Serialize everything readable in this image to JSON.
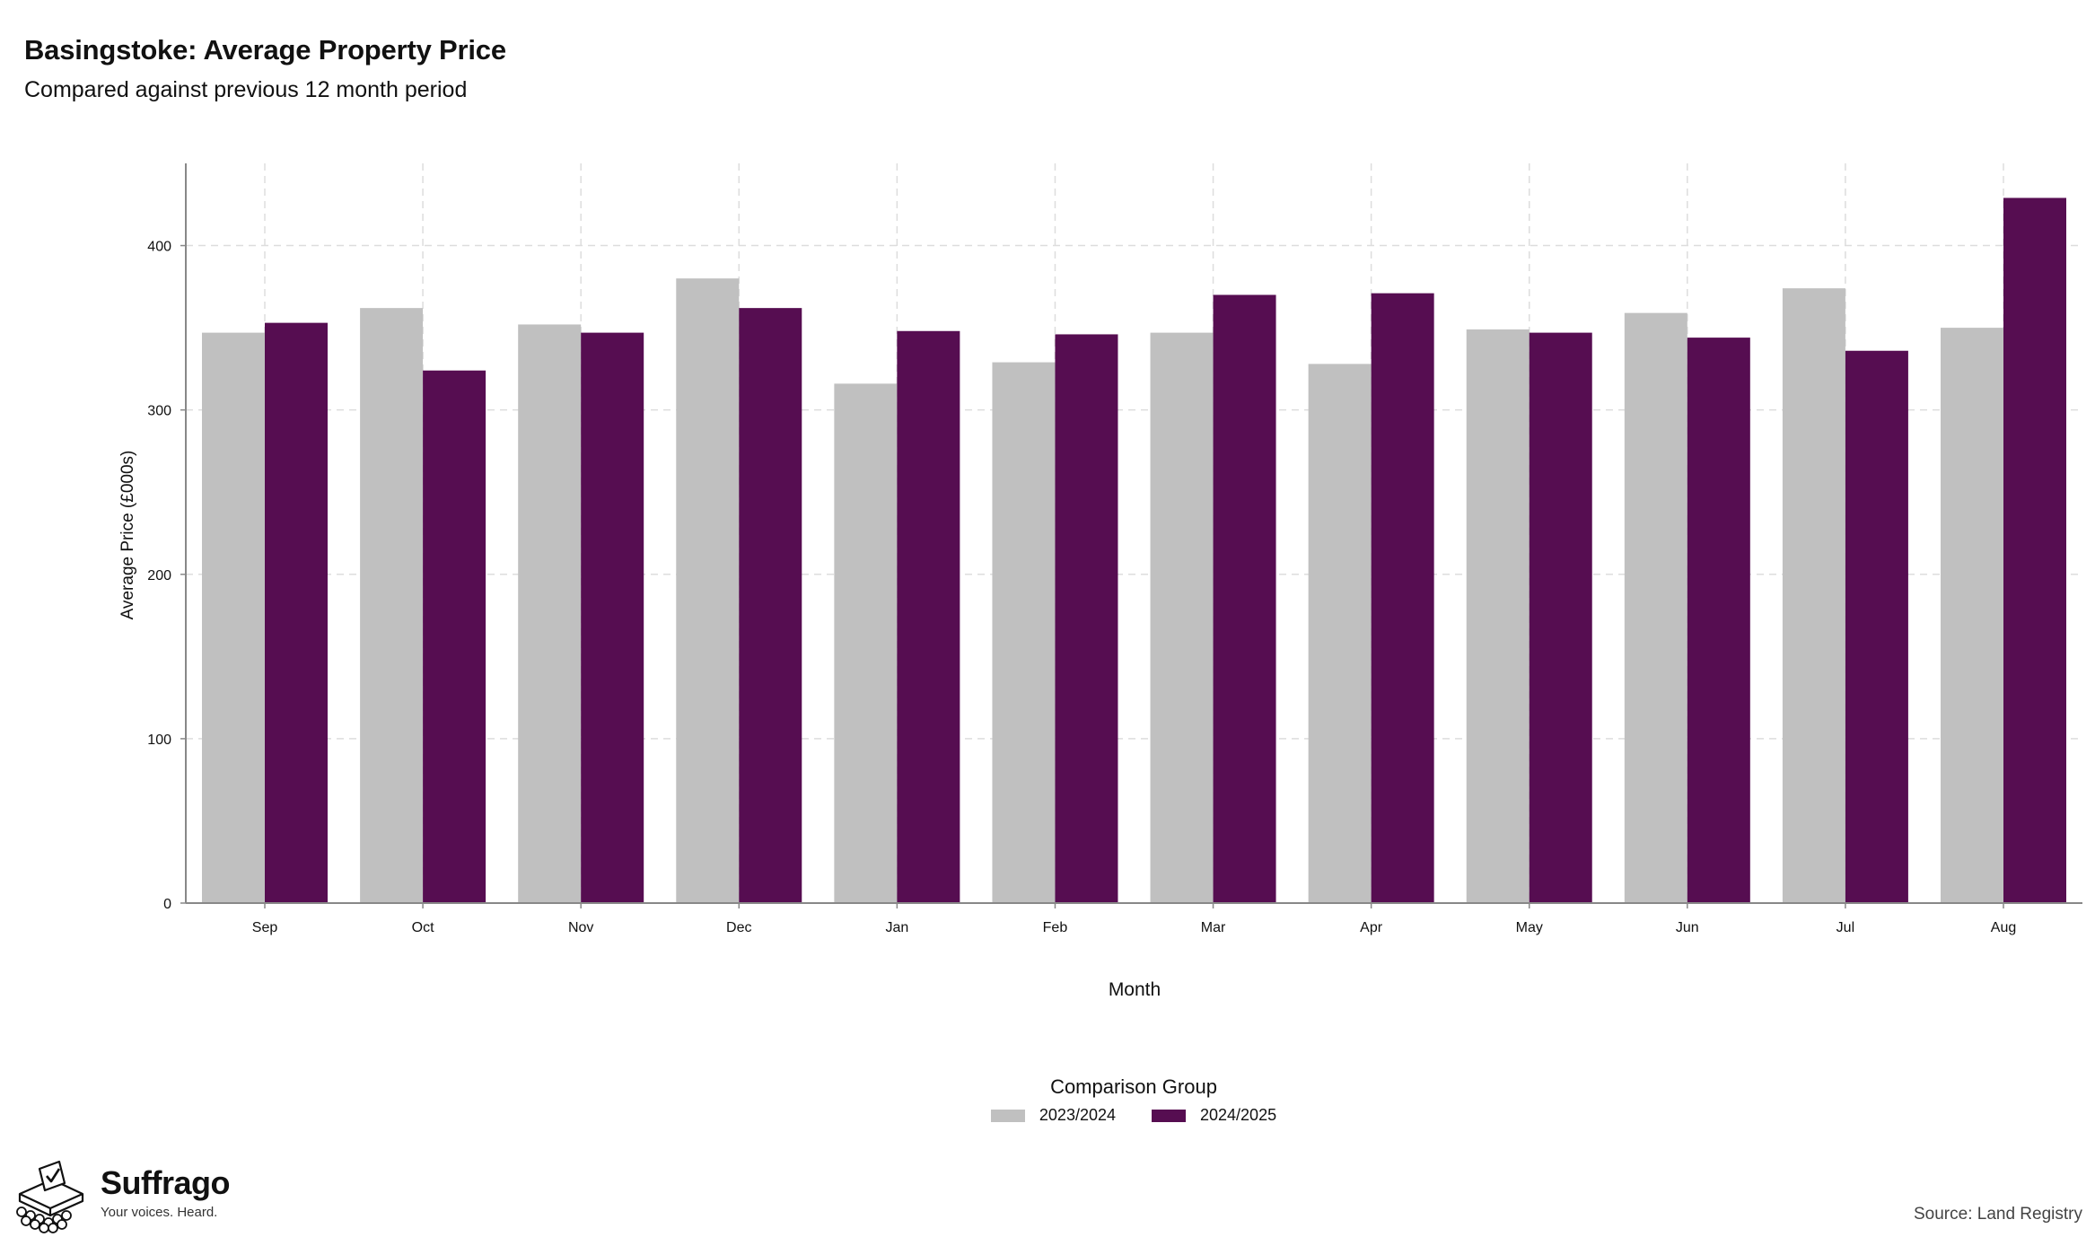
{
  "header": {
    "title": "Basingstoke: Average Property Price",
    "subtitle": "Compared against previous 12 month period"
  },
  "colors": {
    "series_2023": "#c0c0c0",
    "series_2024": "#560d51",
    "grid": "#dddddd",
    "axis": "#888888"
  },
  "chart_data": {
    "type": "bar",
    "title": "Basingstoke: Average Property Price",
    "subtitle": "Compared against previous 12 month period",
    "xlabel": "Month",
    "ylabel": "Average Price (£000s)",
    "ylim": [
      0,
      450
    ],
    "yticks": [
      0,
      100,
      200,
      300,
      400
    ],
    "grid": true,
    "legend_title": "Comparison Group",
    "legend_placement": "bottom",
    "categories": [
      "Sep",
      "Oct",
      "Nov",
      "Dec",
      "Jan",
      "Feb",
      "Mar",
      "Apr",
      "May",
      "Jun",
      "Jul",
      "Aug"
    ],
    "series": [
      {
        "name": "2023/2024",
        "color": "#c0c0c0",
        "values": [
          347,
          362,
          352,
          380,
          316,
          329,
          347,
          328,
          349,
          359,
          374,
          350
        ]
      },
      {
        "name": "2024/2025",
        "color": "#560d51",
        "values": [
          353,
          324,
          347,
          362,
          348,
          346,
          370,
          371,
          347,
          344,
          336,
          429
        ]
      }
    ]
  },
  "legend": {
    "title": "Comparison Group",
    "items": [
      "2023/2024",
      "2024/2025"
    ]
  },
  "branding": {
    "name": "Suffrago",
    "tagline": "Your voices. Heard.",
    "icon": "ballot-box-icon"
  },
  "footer": {
    "source": "Source: Land Registry"
  }
}
